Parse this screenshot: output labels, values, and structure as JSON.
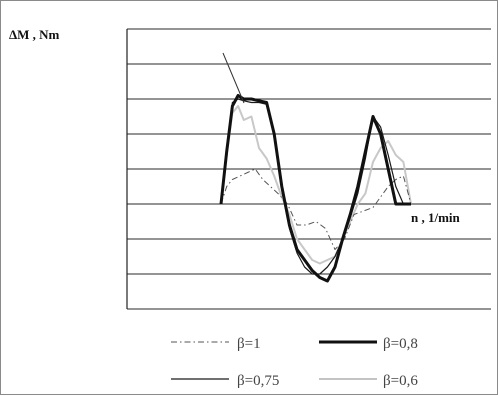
{
  "chart_data": {
    "type": "line",
    "xlabel": "n , 1/min",
    "ylabel": "ΔM , Nm",
    "grid": true,
    "legend_position": "bottom",
    "ylim": [
      -3,
      5
    ],
    "xlim": [
      0,
      100
    ],
    "gridlines_y": [
      5,
      4,
      3,
      2,
      1,
      0,
      -1,
      -2,
      -3
    ],
    "series": [
      {
        "name": "β=1",
        "style": "dashdot",
        "color": "#555555",
        "x": [
          0,
          3,
          6,
          10,
          14,
          18,
          22,
          26,
          30,
          35,
          40,
          45,
          50,
          55,
          60,
          65,
          70,
          75,
          80,
          84,
          88,
          92,
          96,
          100
        ],
        "y": [
          0,
          0.5,
          0.7,
          0.8,
          0.9,
          1.0,
          0.7,
          0.5,
          0.3,
          0.0,
          -0.6,
          -0.6,
          -0.5,
          -0.7,
          -1.3,
          -1.0,
          -0.3,
          -0.2,
          -0.1,
          0.2,
          0.5,
          0.7,
          0.8,
          0.0
        ]
      },
      {
        "name": "β=0,8",
        "style": "solid",
        "color": "#111111",
        "x": [
          0,
          3,
          6,
          9,
          12,
          16,
          20,
          24,
          28,
          32,
          36,
          40,
          44,
          48,
          52,
          56,
          60,
          64,
          68,
          72,
          76,
          80,
          84,
          88,
          92,
          96,
          100
        ],
        "y": [
          0,
          1.5,
          2.8,
          3.1,
          3.0,
          3.0,
          2.95,
          2.9,
          2.0,
          0.5,
          -0.6,
          -1.3,
          -1.6,
          -1.9,
          -2.1,
          -2.2,
          -1.8,
          -1.0,
          -0.3,
          0.5,
          1.5,
          2.5,
          2.0,
          1.0,
          0.0,
          0.0,
          0.0
        ]
      },
      {
        "name": "β=0,75",
        "style": "solid-thin",
        "color": "#1a1a1a",
        "x": [
          0,
          3,
          6,
          9,
          12,
          16,
          20,
          24,
          28,
          32,
          36,
          40,
          44,
          48,
          52,
          56,
          60,
          64,
          68,
          72,
          76,
          80,
          84,
          88,
          92,
          96,
          100
        ],
        "y": [
          0,
          1.6,
          2.9,
          3.0,
          2.95,
          2.9,
          2.9,
          2.85,
          2.0,
          0.4,
          -0.7,
          -1.4,
          -1.8,
          -2.0,
          -2.0,
          -1.8,
          -1.5,
          -1.0,
          -0.4,
          0.3,
          1.3,
          2.5,
          2.2,
          1.4,
          0.5,
          0.0,
          0.0
        ]
      },
      {
        "name": "β=0,6",
        "style": "solid-light",
        "color": "#c8c8c8",
        "x": [
          0,
          3,
          6,
          9,
          12,
          16,
          20,
          24,
          28,
          32,
          36,
          40,
          44,
          48,
          52,
          56,
          60,
          64,
          68,
          72,
          76,
          80,
          84,
          88,
          92,
          96,
          100
        ],
        "y": [
          0,
          1.4,
          2.6,
          2.8,
          2.4,
          2.5,
          1.6,
          1.3,
          0.8,
          0.2,
          -0.3,
          -1.0,
          -1.3,
          -1.6,
          -1.7,
          -1.6,
          -1.5,
          -1.0,
          -0.5,
          0.0,
          0.3,
          1.2,
          1.6,
          1.8,
          1.4,
          1.2,
          0.0
        ]
      }
    ],
    "legend": [
      {
        "label": "β=1",
        "style": "dashdot"
      },
      {
        "label": "β=0,8",
        "style": "solid"
      },
      {
        "label": "β=0,75",
        "style": "solid-thin"
      },
      {
        "label": "β=0,6",
        "style": "solid-light"
      }
    ]
  }
}
